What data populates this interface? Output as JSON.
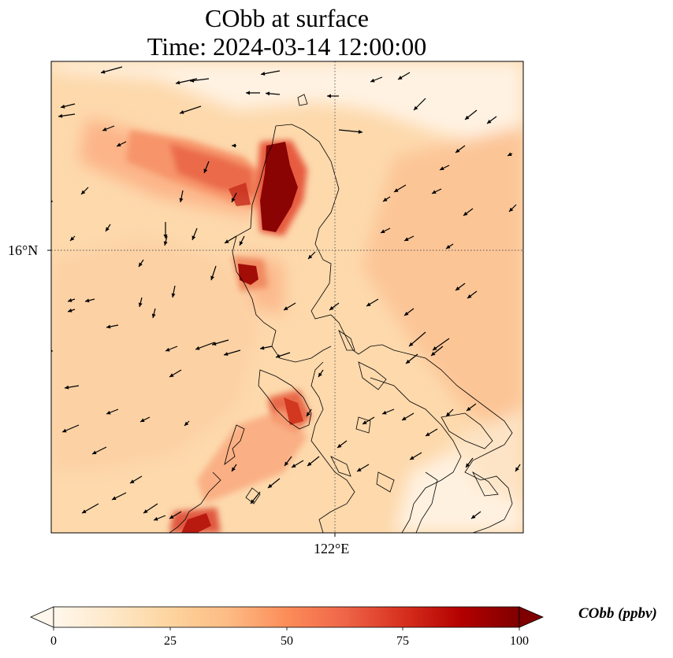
{
  "figure": {
    "title_line1": "CObb at surface",
    "title_line2": "Time: 2024-03-14 12:00:00"
  },
  "map": {
    "lat_label": "16°N",
    "lon_label": "122°E",
    "gridlines": "dotted"
  },
  "colorbar": {
    "label": "CObb (ppbv)",
    "colormap": "OrRd",
    "ticks": [
      "0",
      "25",
      "50",
      "75",
      "100"
    ],
    "extend": "both",
    "colors": [
      "#fff7ec",
      "#fee8c8",
      "#fdd49e",
      "#fdbb84",
      "#fc8d59",
      "#ef6548",
      "#d7301f",
      "#b30000",
      "#7f0000"
    ]
  }
}
